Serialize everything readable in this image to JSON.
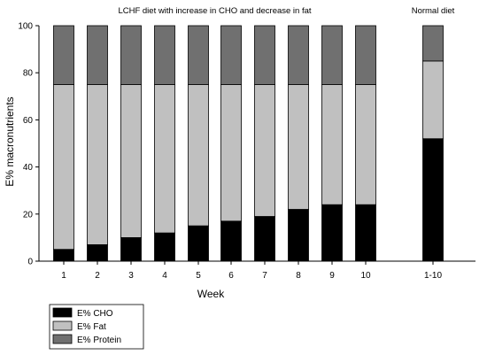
{
  "chart_data": {
    "type": "bar",
    "stacked": true,
    "categories": [
      "1",
      "2",
      "3",
      "4",
      "5",
      "6",
      "7",
      "8",
      "9",
      "10",
      "1-10"
    ],
    "series": [
      {
        "name": "E% CHO",
        "color": "#000000",
        "values": [
          5,
          7,
          10,
          12,
          15,
          17,
          19,
          22,
          24,
          24,
          52
        ]
      },
      {
        "name": "E% Fat",
        "color": "#c0c0c0",
        "values": [
          70,
          68,
          65,
          63,
          60,
          58,
          56,
          53,
          51,
          51,
          33
        ]
      },
      {
        "name": "E% Protein",
        "color": "#707070",
        "values": [
          25,
          25,
          25,
          25,
          25,
          25,
          25,
          25,
          25,
          25,
          15
        ]
      }
    ],
    "group_titles": [
      {
        "text": "LCHF diet with increase in CHO and decrease in fat",
        "categories": [
          "1",
          "2",
          "3",
          "4",
          "5",
          "6",
          "7",
          "8",
          "9",
          "10"
        ]
      },
      {
        "text": "Normal diet",
        "categories": [
          "1-10"
        ]
      }
    ],
    "xlabel": "Week",
    "ylabel": "E% macronutrients",
    "ylim": [
      0,
      100
    ],
    "yticks": [
      0,
      20,
      40,
      60,
      80,
      100
    ],
    "grid": false,
    "legend": "bottom-left"
  }
}
